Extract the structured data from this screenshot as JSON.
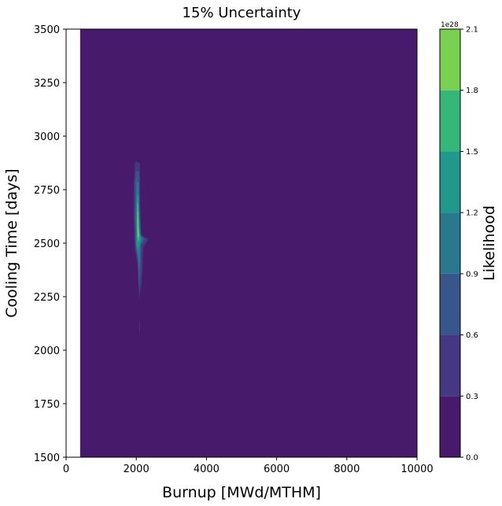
{
  "chart_data": {
    "type": "heatmap",
    "title": "15% Uncertainty",
    "xlabel": "Burnup [MWd/MTHM]",
    "ylabel": "Cooling Time [days]",
    "xlim": [
      0,
      10000
    ],
    "ylim": [
      1500,
      3500
    ],
    "xticks": [
      "0",
      "2000",
      "4000",
      "6000",
      "8000",
      "10000"
    ],
    "yticks": [
      "1500",
      "1750",
      "2000",
      "2250",
      "2500",
      "2750",
      "3000",
      "3250",
      "3500"
    ],
    "data_x_range": [
      400,
      10000
    ],
    "grid": false,
    "colorbar": {
      "label": "Likelihood",
      "multiplier": "1e28",
      "levels": [
        0.0,
        0.3,
        0.6,
        0.9,
        1.2,
        1.5,
        1.8,
        2.1
      ],
      "ticks": [
        "0.0",
        "0.3",
        "0.6",
        "0.9",
        "1.2",
        "1.5",
        "1.8",
        "2.1"
      ],
      "colors": [
        "#481a6c",
        "#453781",
        "#39568c",
        "#2a788e",
        "#20988b",
        "#35b779",
        "#7ad151"
      ]
    },
    "regions": [
      {
        "level": 1,
        "points": [
          [
            1970,
            2880
          ],
          [
            2100,
            2875
          ],
          [
            2110,
            2700
          ],
          [
            2140,
            2530
          ],
          [
            2350,
            2520
          ],
          [
            2200,
            2480
          ],
          [
            2160,
            2320
          ],
          [
            2080,
            2240
          ],
          [
            2040,
            2400
          ],
          [
            1960,
            2470
          ],
          [
            1930,
            2600
          ],
          [
            1930,
            2780
          ]
        ]
      },
      {
        "level": 2,
        "points": [
          [
            1990,
            2840
          ],
          [
            2080,
            2830
          ],
          [
            2090,
            2680
          ],
          [
            2130,
            2540
          ],
          [
            2260,
            2520
          ],
          [
            2140,
            2490
          ],
          [
            2120,
            2360
          ],
          [
            2070,
            2280
          ],
          [
            2040,
            2420
          ],
          [
            1980,
            2480
          ],
          [
            1960,
            2620
          ],
          [
            1960,
            2780
          ]
        ]
      },
      {
        "level": 3,
        "points": [
          [
            2010,
            2790
          ],
          [
            2070,
            2780
          ],
          [
            2080,
            2640
          ],
          [
            2110,
            2540
          ],
          [
            2180,
            2520
          ],
          [
            2120,
            2500
          ],
          [
            2090,
            2380
          ],
          [
            2040,
            2450
          ],
          [
            1990,
            2490
          ],
          [
            1985,
            2620
          ]
        ]
      },
      {
        "level": 4,
        "points": [
          [
            2020,
            2730
          ],
          [
            2060,
            2720
          ],
          [
            2070,
            2620
          ],
          [
            2100,
            2540
          ],
          [
            2130,
            2520
          ],
          [
            2090,
            2500
          ],
          [
            2060,
            2460
          ],
          [
            2010,
            2500
          ],
          [
            2005,
            2620
          ]
        ]
      },
      {
        "level": 5,
        "points": [
          [
            2030,
            2690
          ],
          [
            2060,
            2680
          ],
          [
            2065,
            2580
          ],
          [
            2090,
            2530
          ],
          [
            2060,
            2505
          ],
          [
            2030,
            2520
          ],
          [
            2020,
            2600
          ]
        ]
      },
      {
        "level": 6,
        "points": [
          [
            2040,
            2650
          ],
          [
            2055,
            2645
          ],
          [
            2060,
            2570
          ],
          [
            2075,
            2535
          ],
          [
            2050,
            2520
          ],
          [
            2035,
            2560
          ]
        ]
      },
      {
        "level": 1,
        "points": [
          [
            2085,
            2135
          ],
          [
            2105,
            2135
          ],
          [
            2105,
            2090
          ],
          [
            2085,
            2090
          ]
        ]
      }
    ]
  }
}
